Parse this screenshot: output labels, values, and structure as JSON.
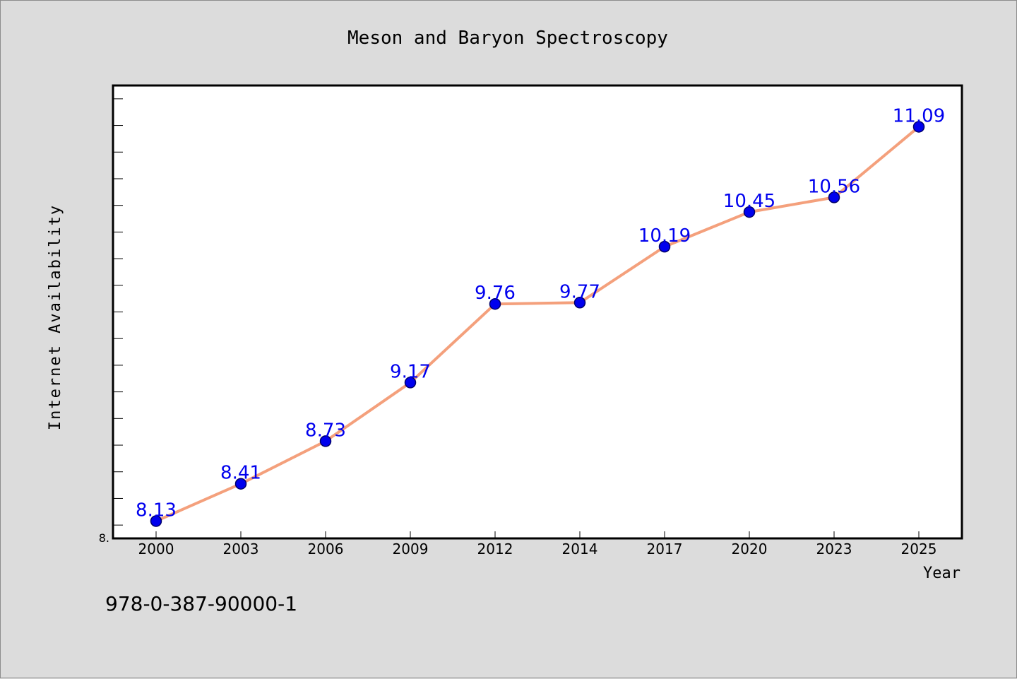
{
  "chart_data": {
    "type": "line",
    "title": "Meson and Baryon Spectroscopy",
    "xlabel": "Year",
    "ylabel": "Internet Availability",
    "categories": [
      "2000",
      "2003",
      "2006",
      "2009",
      "2012",
      "2014",
      "2017",
      "2020",
      "2023",
      "2025"
    ],
    "series": [
      {
        "values": [
          8.13,
          8.41,
          8.73,
          9.17,
          9.76,
          9.77,
          10.19,
          10.45,
          10.56,
          11.09
        ],
        "data_labels": [
          "8.13",
          "8.41",
          "8.73",
          "9.17",
          "9.76",
          "9.77",
          "10.19",
          "10.45",
          "10.56",
          "11.09"
        ],
        "line_color": "#f4a07c",
        "marker_color": "#0000ee",
        "label_color": "#0000ee"
      }
    ],
    "ylim": [
      8.0,
      11.4
    ],
    "y_tick_labels": [
      "8."
    ],
    "grid": false,
    "legend": "none"
  },
  "footer": {
    "isbn": "978-0-387-90000-1"
  },
  "colors": {
    "background": "#dcdcdc",
    "plot_area": "#ffffff",
    "axis": "#000000"
  }
}
